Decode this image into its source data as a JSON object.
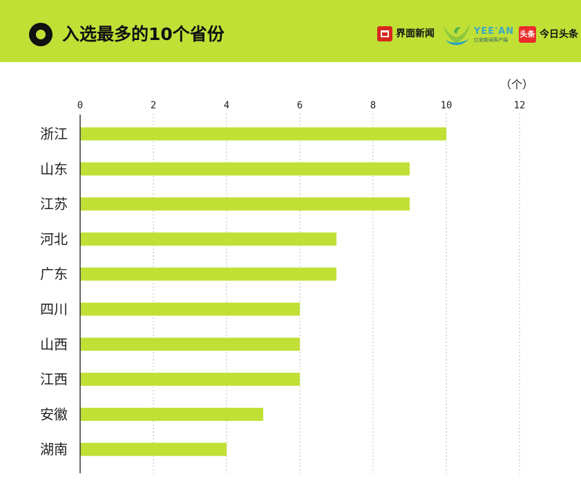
{
  "header": {
    "title": "入选最多的10个省份",
    "logos": {
      "jiemian": {
        "icon": "jiemian-logo-icon",
        "label": "界面新闻"
      },
      "yeean": {
        "icon": "yeean-logo-icon",
        "label": "YEE'AN",
        "sub": "亿安新闻客户端"
      },
      "toutiao": {
        "icon": "toutiao-logo-icon",
        "badge": "头条",
        "label": "今日头条"
      }
    }
  },
  "colors": {
    "accent": "#c0e036",
    "bar": "#c0e036",
    "text": "#222222"
  },
  "chart_data": {
    "type": "bar",
    "orientation": "horizontal",
    "categories": [
      "浙江",
      "山东",
      "江苏",
      "河北",
      "广东",
      "四川",
      "山西",
      "江西",
      "安徽",
      "湖南"
    ],
    "values": [
      10,
      9,
      9,
      7,
      7,
      6,
      6,
      6,
      5,
      4
    ],
    "unit": "（个）",
    "xlim": [
      0,
      12
    ],
    "xticks": [
      "0",
      "2",
      "4",
      "6",
      "8",
      "10",
      "12"
    ],
    "grid": "vertical dotted",
    "axis_position": "top"
  }
}
